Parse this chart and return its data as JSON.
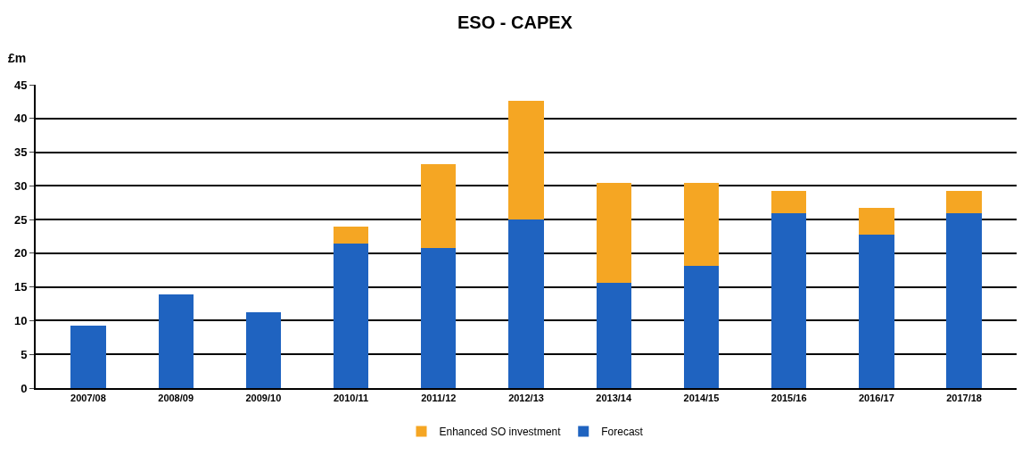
{
  "chart_data": {
    "type": "bar",
    "title": "ESO - CAPEX",
    "ylabel": "£m",
    "categories": [
      "2007/08",
      "2008/09",
      "2009/10",
      "2010/11",
      "2011/12",
      "2012/13",
      "2013/14",
      "2014/15",
      "2015/16",
      "2016/17",
      "2017/18"
    ],
    "series": [
      {
        "name": "Forecast",
        "color": "#1f63c0",
        "values": [
          9.2,
          13.9,
          11.3,
          21.5,
          20.8,
          25.0,
          15.6,
          18.1,
          26.0,
          22.7,
          26.0
        ]
      },
      {
        "name": "Enhanced SO investment",
        "color": "#f5a623",
        "values": [
          null,
          null,
          null,
          2.5,
          12.4,
          17.6,
          14.9,
          12.4,
          3.3,
          4.0,
          3.3
        ]
      }
    ],
    "stacked": true,
    "ylim": [
      0,
      45
    ],
    "yticks": [
      0,
      5,
      10,
      15,
      20,
      25,
      30,
      35,
      40,
      45
    ],
    "grid": "y",
    "legend": "bottom"
  }
}
